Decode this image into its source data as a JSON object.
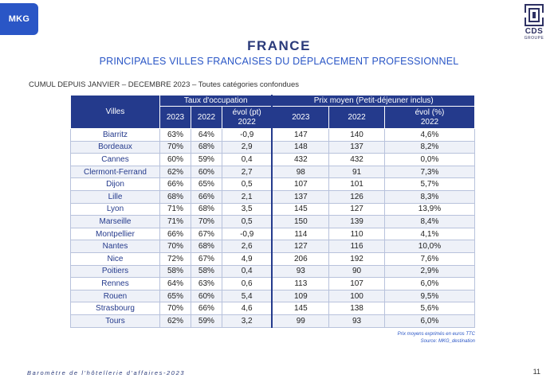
{
  "header": {
    "logo_left": "MKG",
    "logo_right_main": "CDS",
    "logo_right_sub": "GROUPE",
    "title": "FRANCE",
    "subtitle": "PRINCIPALES VILLES FRANCAISES DU DÉPLACEMENT PROFESSIONNEL",
    "note": "CUMUL DEPUIS JANVIER – DECEMBRE 2023 – Toutes catégories confondues"
  },
  "table": {
    "col_villes": "Villes",
    "group1": "Taux d'occupation",
    "group2": "Prix moyen (Petit-déjeuner inclus)",
    "subcols": [
      "2023",
      "2022",
      "évol (pt)\n2022",
      "2023",
      "2022",
      "évol (%)\n2022"
    ],
    "rows": [
      [
        "Biarritz",
        "63%",
        "64%",
        "-0,9",
        "147",
        "140",
        "4,6%"
      ],
      [
        "Bordeaux",
        "70%",
        "68%",
        "2,9",
        "148",
        "137",
        "8,2%"
      ],
      [
        "Cannes",
        "60%",
        "59%",
        "0,4",
        "432",
        "432",
        "0,0%"
      ],
      [
        "Clermont-Ferrand",
        "62%",
        "60%",
        "2,7",
        "98",
        "91",
        "7,3%"
      ],
      [
        "Dijon",
        "66%",
        "65%",
        "0,5",
        "107",
        "101",
        "5,7%"
      ],
      [
        "Lille",
        "68%",
        "66%",
        "2,1",
        "137",
        "126",
        "8,3%"
      ],
      [
        "Lyon",
        "71%",
        "68%",
        "3,5",
        "145",
        "127",
        "13,9%"
      ],
      [
        "Marseille",
        "71%",
        "70%",
        "0,5",
        "150",
        "139",
        "8,4%"
      ],
      [
        "Montpellier",
        "66%",
        "67%",
        "-0,9",
        "114",
        "110",
        "4,1%"
      ],
      [
        "Nantes",
        "70%",
        "68%",
        "2,6",
        "127",
        "116",
        "10,0%"
      ],
      [
        "Nice",
        "72%",
        "67%",
        "4,9",
        "206",
        "192",
        "7,6%"
      ],
      [
        "Poitiers",
        "58%",
        "58%",
        "0,4",
        "93",
        "90",
        "2,9%"
      ],
      [
        "Rennes",
        "64%",
        "63%",
        "0,6",
        "113",
        "107",
        "6,0%"
      ],
      [
        "Rouen",
        "65%",
        "60%",
        "5,4",
        "109",
        "100",
        "9,5%"
      ],
      [
        "Strasbourg",
        "70%",
        "66%",
        "4,6",
        "145",
        "138",
        "5,6%"
      ],
      [
        "Tours",
        "62%",
        "59%",
        "3,2",
        "99",
        "93",
        "6,0%"
      ]
    ]
  },
  "source": {
    "line1": "Prix moyens exprimés en euros TTC",
    "line2": "Source: MKG_destination"
  },
  "footer": {
    "text": "Baromètre de l'hôtellerie d'affaires-2023",
    "page": "11"
  },
  "colors": {
    "header_bg": "#243a8c",
    "accent": "#2a56c6"
  }
}
